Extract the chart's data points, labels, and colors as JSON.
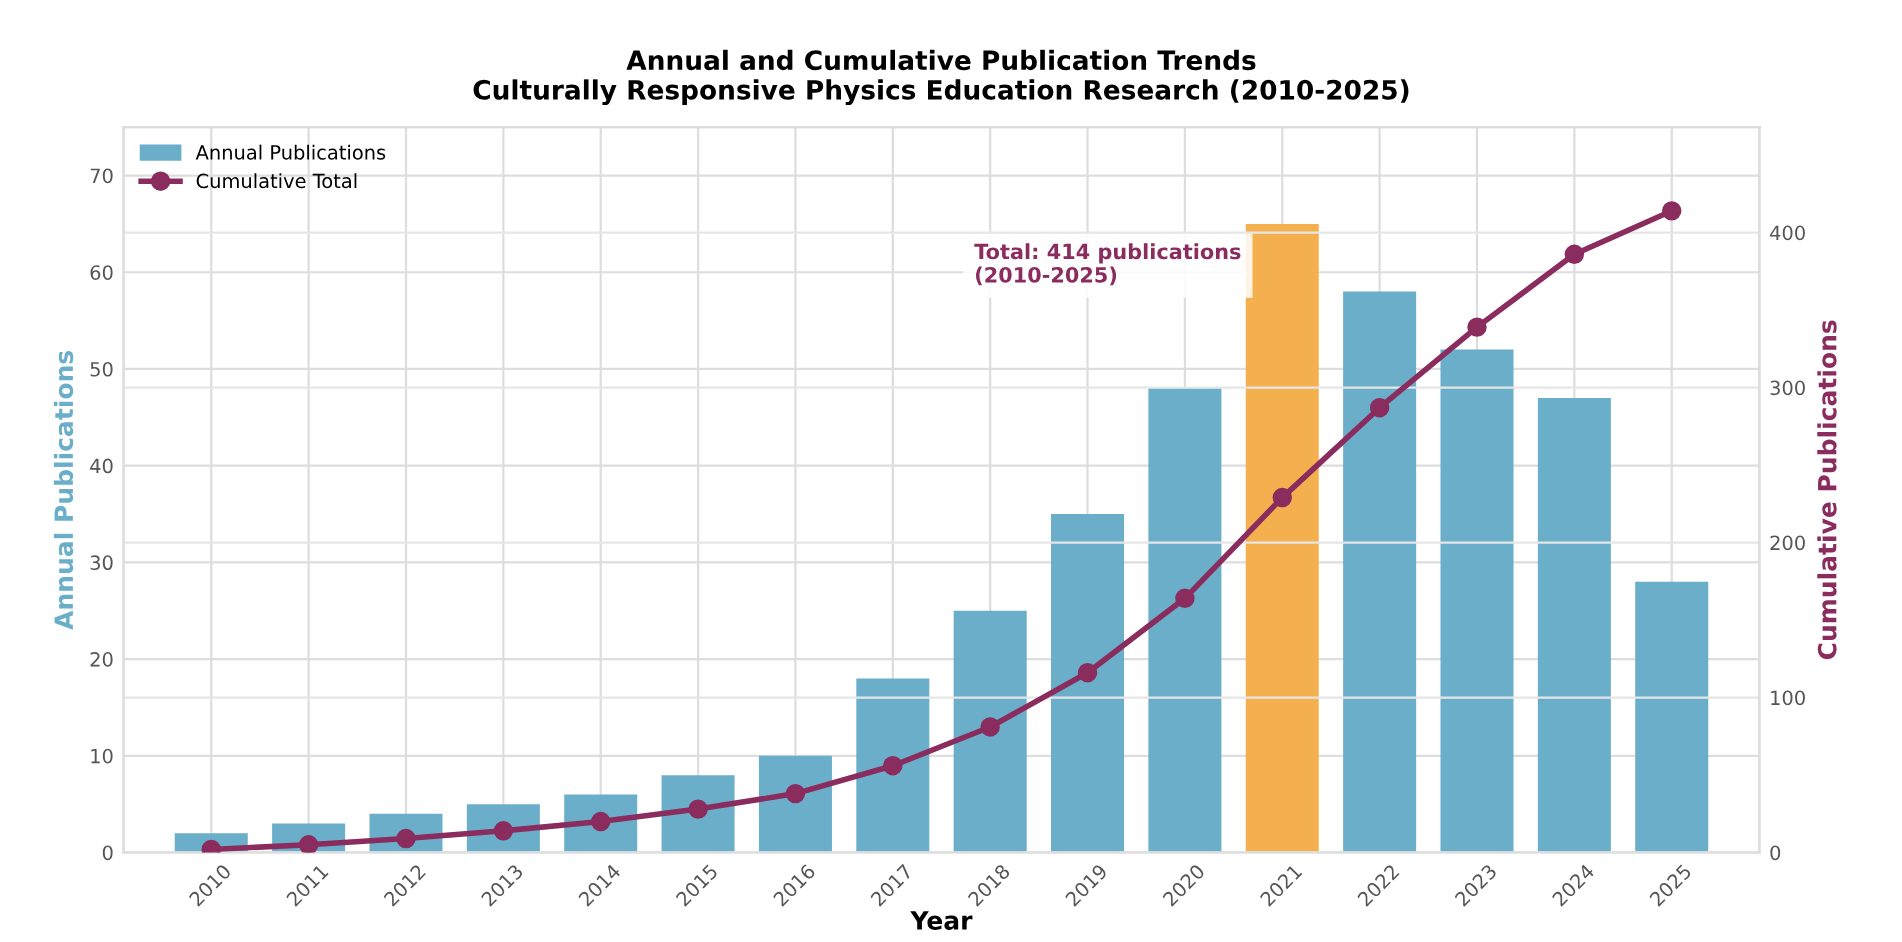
{
  "chart_data": {
    "type": "bar",
    "title": "Annual and Cumulative Publication Trends\nCulturally Responsive Physics Education Research (2010-2025)",
    "xlabel": "Year",
    "ylabel": "Annual Publications",
    "y2label": "Cumulative Publications",
    "categories": [
      "2010",
      "2011",
      "2012",
      "2013",
      "2014",
      "2015",
      "2016",
      "2017",
      "2018",
      "2019",
      "2020",
      "2021",
      "2022",
      "2023",
      "2024",
      "2025"
    ],
    "series": [
      {
        "name": "Annual Publications",
        "colors": [
          "#6aaec9",
          "#6aaec9",
          "#6aaec9",
          "#6aaec9",
          "#6aaec9",
          "#6aaec9",
          "#6aaec9",
          "#6aaec9",
          "#6aaec9",
          "#6aaec9",
          "#6aaec9",
          "#f4b04e",
          "#6aaec9",
          "#6aaec9",
          "#6aaec9",
          "#6aaec9"
        ],
        "color": "#6aaec9",
        "values": [
          2,
          3,
          4,
          5,
          6,
          8,
          10,
          18,
          25,
          35,
          48,
          65,
          58,
          52,
          47,
          28
        ]
      },
      {
        "name": "Cumulative Total",
        "type": "line",
        "axis": "y2",
        "color": "#8b2c5e",
        "marker": "circle",
        "values": [
          2,
          5,
          9,
          14,
          20,
          28,
          38,
          56,
          81,
          116,
          164,
          229,
          287,
          339,
          386,
          414
        ]
      }
    ],
    "ylim": [
      0,
      75
    ],
    "yticks": [
      0,
      10,
      20,
      30,
      40,
      50,
      60,
      70
    ],
    "y2lim": [
      0,
      468
    ],
    "y2ticks": [
      0,
      100,
      200,
      300,
      400
    ],
    "annotations": [
      "Total: 414 publications\n(2010-2025)"
    ],
    "grid": true,
    "legend": "top left"
  }
}
